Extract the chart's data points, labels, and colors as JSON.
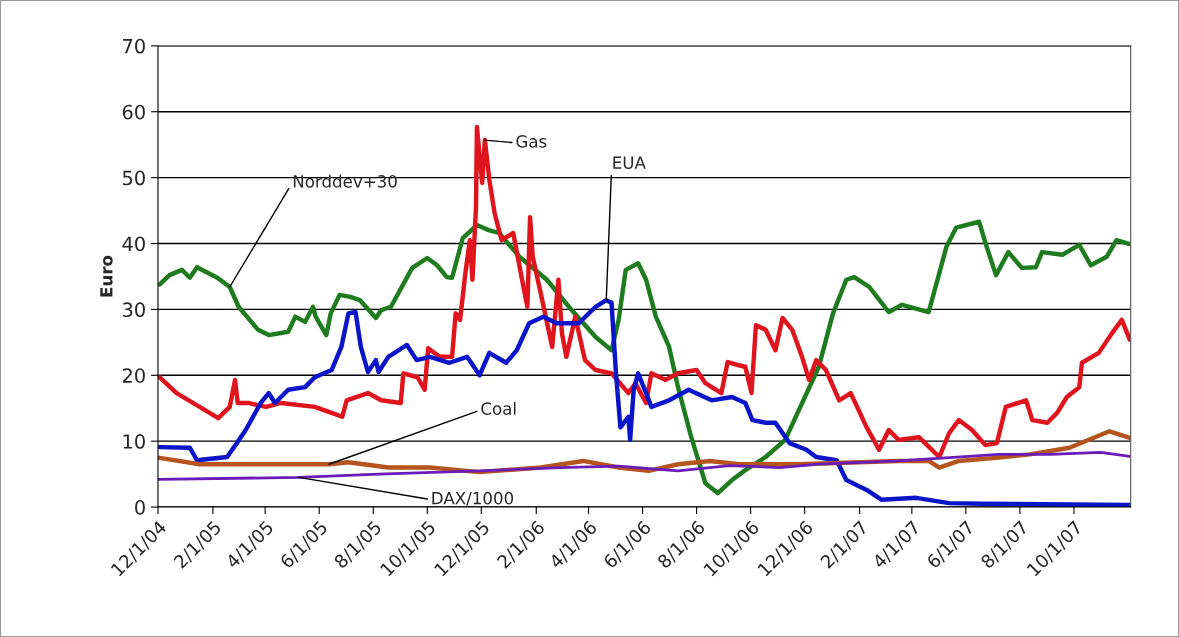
{
  "chart_data": {
    "type": "line",
    "ylabel": "Euro",
    "xlim": [
      "2004-12-01",
      "2007-12-04"
    ],
    "xticks": [
      {
        "value": "2004-12-01",
        "label": "12/1/04"
      },
      {
        "value": "2005-02-01",
        "label": "2/1/05"
      },
      {
        "value": "2005-04-01",
        "label": "4/1/05"
      },
      {
        "value": "2005-06-01",
        "label": "6/1/05"
      },
      {
        "value": "2005-08-01",
        "label": "8/1/05"
      },
      {
        "value": "2005-10-01",
        "label": "10/1/05"
      },
      {
        "value": "2005-12-01",
        "label": "12/1/05"
      },
      {
        "value": "2006-02-01",
        "label": "2/1/06"
      },
      {
        "value": "2006-04-01",
        "label": "4/1/06"
      },
      {
        "value": "2006-06-01",
        "label": "6/1/06"
      },
      {
        "value": "2006-08-01",
        "label": "8/1/06"
      },
      {
        "value": "2006-10-01",
        "label": "10/1/06"
      },
      {
        "value": "2006-12-01",
        "label": "12/1/06"
      },
      {
        "value": "2007-02-01",
        "label": "2/1/07"
      },
      {
        "value": "2007-04-01",
        "label": "4/1/07"
      },
      {
        "value": "2007-06-01",
        "label": "6/1/07"
      },
      {
        "value": "2007-08-01",
        "label": "8/1/07"
      },
      {
        "value": "2007-10-01",
        "label": "10/1/07"
      }
    ],
    "ylim": [
      0,
      70
    ],
    "yticks": [
      0,
      10,
      20,
      30,
      40,
      50,
      60,
      70
    ],
    "grid": "y",
    "legend": false,
    "marker": "none",
    "line_style": "solid",
    "series": [
      {
        "name": "Norddev+30",
        "color": "#1e7b1e",
        "x": [
          "2004-12-03",
          "2004-12-14",
          "2004-12-28",
          "2005-01-06",
          "2005-01-14",
          "2005-02-06",
          "2005-02-20",
          "2005-03-02",
          "2005-03-24",
          "2005-04-05",
          "2005-04-27",
          "2005-05-05",
          "2005-05-16",
          "2005-05-25",
          "2005-05-28",
          "2005-06-09",
          "2005-06-14",
          "2005-06-24",
          "2005-07-06",
          "2005-07-17",
          "2005-08-04",
          "2005-08-10",
          "2005-08-21",
          "2005-09-14",
          "2005-10-01",
          "2005-10-12",
          "2005-10-23",
          "2005-10-29",
          "2005-11-10",
          "2005-11-26",
          "2005-12-10",
          "2005-12-21",
          "2006-01-13",
          "2006-02-13",
          "2006-03-13",
          "2006-04-09",
          "2006-04-27",
          "2006-05-05",
          "2006-05-13",
          "2006-05-27",
          "2006-06-05",
          "2006-06-16",
          "2006-07-01",
          "2006-07-11",
          "2006-07-26",
          "2006-08-11",
          "2006-08-25",
          "2006-09-10",
          "2006-09-25",
          "2006-10-18",
          "2006-11-09",
          "2006-11-23",
          "2006-12-17",
          "2007-01-02",
          "2007-01-17",
          "2007-01-26",
          "2007-02-12",
          "2007-03-06",
          "2007-03-21",
          "2007-04-20",
          "2007-05-02",
          "2007-05-10",
          "2007-05-21",
          "2007-06-16",
          "2007-06-23",
          "2007-07-05",
          "2007-07-19",
          "2007-08-03",
          "2007-08-19",
          "2007-08-26",
          "2007-09-18",
          "2007-10-07",
          "2007-10-20",
          "2007-11-07",
          "2007-11-18",
          "2007-12-03"
        ],
        "values": [
          33.8,
          35.2,
          36,
          34.8,
          36.4,
          34.8,
          33.4,
          30.4,
          26.9,
          26.1,
          26.6,
          28.9,
          28.1,
          30.4,
          28.9,
          26.1,
          29.4,
          32.2,
          31.9,
          31.4,
          28.7,
          29.9,
          30.4,
          36.3,
          37.8,
          36.7,
          34.9,
          34.8,
          40.8,
          42.8,
          42,
          41.6,
          38,
          34.5,
          29.9,
          25.8,
          23.8,
          28.4,
          36,
          37,
          34.5,
          28.9,
          24.3,
          18.2,
          10.6,
          3.6,
          2.1,
          4.1,
          5.6,
          7.6,
          10.2,
          14.3,
          21.3,
          29.4,
          34.5,
          34.9,
          33.4,
          29.6,
          30.7,
          29.6,
          35.5,
          39.5,
          42.4,
          43.3,
          40.1,
          35.2,
          38.7,
          36.3,
          36.4,
          38.7,
          38.3,
          39.8,
          36.7,
          38,
          40.5,
          39.9
        ]
      },
      {
        "name": "Gas",
        "color": "#e0141c",
        "x": [
          "2004-12-03",
          "2004-12-22",
          "2005-01-17",
          "2005-02-07",
          "2005-02-20",
          "2005-02-26",
          "2005-03-01",
          "2005-03-13",
          "2005-04-02",
          "2005-04-19",
          "2005-05-27",
          "2005-06-15",
          "2005-06-27",
          "2005-07-02",
          "2005-07-26",
          "2005-08-10",
          "2005-09-01",
          "2005-09-04",
          "2005-09-20",
          "2005-09-28",
          "2005-10-02",
          "2005-10-15",
          "2005-10-29",
          "2005-11-02",
          "2005-11-07",
          "2005-11-13",
          "2005-11-18",
          "2005-11-21",
          "2005-11-25",
          "2005-11-26",
          "2005-12-02",
          "2005-12-05",
          "2005-12-10",
          "2005-12-16",
          "2005-12-24",
          "2006-01-06",
          "2006-01-16",
          "2006-01-22",
          "2006-01-25",
          "2006-01-28",
          "2006-02-06",
          "2006-02-19",
          "2006-02-26",
          "2006-03-02",
          "2006-03-07",
          "2006-03-17",
          "2006-03-28",
          "2006-04-09",
          "2006-04-27",
          "2006-05-16",
          "2006-05-24",
          "2006-06-05",
          "2006-06-11",
          "2006-06-27",
          "2006-07-11",
          "2006-08-01",
          "2006-08-11",
          "2006-08-29",
          "2006-09-05",
          "2006-09-15",
          "2006-09-25",
          "2006-10-02",
          "2006-10-07",
          "2006-10-18",
          "2006-10-29",
          "2006-11-06",
          "2006-11-17",
          "2006-11-28",
          "2006-12-06",
          "2006-12-14",
          "2006-12-25",
          "2007-01-09",
          "2007-01-22",
          "2007-02-09",
          "2007-02-23",
          "2007-03-06",
          "2007-03-17",
          "2007-04-09",
          "2007-05-02",
          "2007-05-13",
          "2007-05-24",
          "2007-06-08",
          "2007-06-23",
          "2007-07-06",
          "2007-07-16",
          "2007-08-08",
          "2007-08-15",
          "2007-09-01",
          "2007-09-12",
          "2007-09-23",
          "2007-10-07",
          "2007-10-10",
          "2007-10-29",
          "2007-11-13",
          "2007-11-24",
          "2007-12-03"
        ],
        "values": [
          19.7,
          17.3,
          15.2,
          13.5,
          15.2,
          19.3,
          15.8,
          15.8,
          15.2,
          15.8,
          15.2,
          14.3,
          13.7,
          16.2,
          17.3,
          16.2,
          15.8,
          20.3,
          19.7,
          17.8,
          24.1,
          22.8,
          22.8,
          29.4,
          28.4,
          35.5,
          40.5,
          34.5,
          45.6,
          57.7,
          49.2,
          55.7,
          49.7,
          44.6,
          40.5,
          41.6,
          34.5,
          30.4,
          44,
          38,
          32.5,
          24.3,
          34.5,
          26.4,
          22.8,
          28.9,
          22.3,
          20.8,
          20.3,
          17.3,
          18.8,
          15.8,
          20.3,
          19.3,
          20.3,
          20.8,
          18.8,
          17.3,
          22,
          21.6,
          21.3,
          17.3,
          27.6,
          26.9,
          23.8,
          28.7,
          26.9,
          22.8,
          19.3,
          22.3,
          20.8,
          16.2,
          17.3,
          12.1,
          8.7,
          11.7,
          10.2,
          10.6,
          7.6,
          11.2,
          13.2,
          11.7,
          9.4,
          9.7,
          15.2,
          16.2,
          13.2,
          12.8,
          14.3,
          16.7,
          18.2,
          21.9,
          23.4,
          26.4,
          28.4,
          25.4
        ]
      },
      {
        "name": "EUA",
        "color": "#0a14c8",
        "x": [
          "2004-12-03",
          "2005-01-06",
          "2005-01-14",
          "2005-02-17",
          "2005-02-28",
          "2005-03-10",
          "2005-03-27",
          "2005-04-05",
          "2005-04-12",
          "2005-04-27",
          "2005-05-16",
          "2005-05-27",
          "2005-06-15",
          "2005-06-26",
          "2005-07-04",
          "2005-07-12",
          "2005-07-18",
          "2005-07-26",
          "2005-08-04",
          "2005-08-07",
          "2005-08-18",
          "2005-09-08",
          "2005-09-19",
          "2005-10-04",
          "2005-10-26",
          "2005-11-15",
          "2005-11-29",
          "2005-12-10",
          "2005-12-29",
          "2006-01-10",
          "2006-01-24",
          "2006-02-09",
          "2006-02-24",
          "2006-03-21",
          "2006-04-09",
          "2006-04-21",
          "2006-04-27",
          "2006-05-02",
          "2006-05-07",
          "2006-05-16",
          "2006-05-18",
          "2006-05-22",
          "2006-05-27",
          "2006-06-05",
          "2006-06-11",
          "2006-07-01",
          "2006-07-23",
          "2006-08-18",
          "2006-09-10",
          "2006-09-25",
          "2006-10-03",
          "2006-10-18",
          "2006-10-29",
          "2006-11-14",
          "2006-12-03",
          "2006-12-14",
          "2007-01-06",
          "2007-01-17",
          "2007-02-09",
          "2007-02-26",
          "2007-04-06",
          "2007-05-13",
          "2007-06-19",
          "2007-12-03"
        ],
        "values": [
          9.1,
          9,
          7.1,
          7.6,
          9.7,
          11.7,
          15.8,
          17.3,
          15.8,
          17.8,
          18.2,
          19.7,
          20.8,
          24.3,
          29.4,
          29.6,
          24.3,
          20.5,
          22.3,
          20.5,
          22.8,
          24.6,
          22.3,
          22.8,
          21.9,
          22.8,
          20,
          23.4,
          21.9,
          23.8,
          27.9,
          28.9,
          27.9,
          27.9,
          30.4,
          31.4,
          31,
          20.3,
          12.1,
          13.7,
          10.2,
          17.8,
          20.3,
          17.3,
          15.2,
          16.2,
          17.8,
          16.2,
          16.7,
          15.8,
          13.2,
          12.8,
          12.8,
          9.7,
          8.7,
          7.6,
          7.1,
          4.1,
          2.6,
          1.1,
          1.4,
          0.6,
          0.5,
          0.3
        ]
      },
      {
        "name": "Coal",
        "color": "#b5541c",
        "x": [
          "2004-12-01",
          "2005-01-17",
          "2005-03-24",
          "2005-06-12",
          "2005-07-04",
          "2005-08-18",
          "2005-10-04",
          "2005-11-29",
          "2006-02-06",
          "2006-03-26",
          "2006-05-05",
          "2006-06-08",
          "2006-07-11",
          "2006-08-16",
          "2006-09-18",
          "2006-11-23",
          "2007-03-17",
          "2007-04-20",
          "2007-05-02",
          "2007-05-24",
          "2007-07-08",
          "2007-08-12",
          "2007-09-26",
          "2007-11-10",
          "2007-12-03"
        ],
        "values": [
          7.5,
          6.5,
          6.5,
          6.5,
          6.8,
          6,
          6,
          5.3,
          6,
          7,
          6,
          5.5,
          6.5,
          7,
          6.5,
          6.5,
          7,
          7,
          6,
          7,
          7.5,
          8,
          9,
          11.5,
          10.5
        ]
      },
      {
        "name": "DAX/1000",
        "color": "#6a1bb8",
        "x": [
          "2004-12-01",
          "2005-05-09",
          "2005-08-07",
          "2005-11-29",
          "2006-02-28",
          "2006-05-05",
          "2006-07-11",
          "2006-09-07",
          "2006-11-03",
          "2006-12-17",
          "2007-03-17",
          "2007-05-13",
          "2007-07-08",
          "2007-09-04",
          "2007-10-31",
          "2007-12-03"
        ],
        "values": [
          4.2,
          4.5,
          5,
          5.5,
          6,
          6.2,
          5.5,
          6.3,
          6,
          6.5,
          7,
          7.5,
          8,
          8,
          8.3,
          7.7
        ]
      }
    ]
  }
}
